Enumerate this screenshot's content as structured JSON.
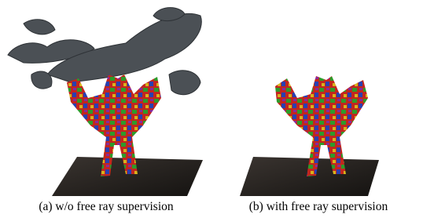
{
  "figure": {
    "captions": [
      "(a) w/o free ray supervision",
      "(b) with free ray supervision"
    ]
  }
}
